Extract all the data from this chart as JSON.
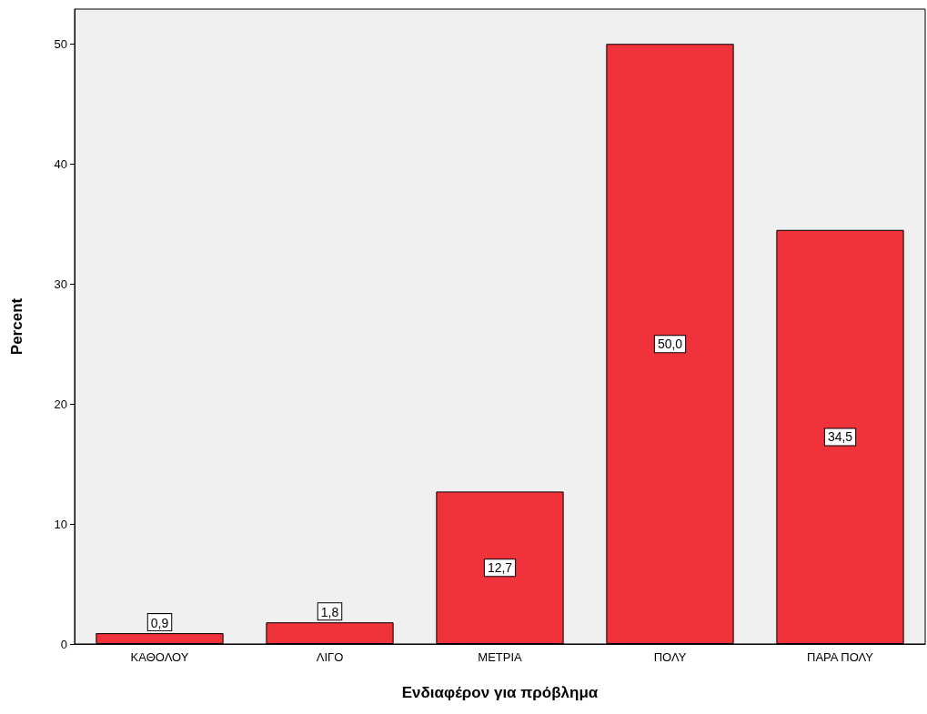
{
  "chart_data": {
    "type": "bar",
    "xlabel": "Ενδιαφέρον για πρόβλημα",
    "ylabel": "Percent",
    "categories": [
      "ΚΑΘΟΛΟΥ",
      "ΛΙΓΟ",
      "ΜΕΤΡΙΑ",
      "ΠΟΛΥ",
      "ΠΑΡΑ ΠΟΛΥ"
    ],
    "values": [
      0.9,
      1.8,
      12.7,
      50.0,
      34.5
    ],
    "value_labels": [
      "0,9",
      "1,8",
      "12,7",
      "50,0",
      "34,5"
    ],
    "color": "#f0323a",
    "ylim": [
      0,
      52.9
    ],
    "yticks": [
      0,
      10,
      20,
      30,
      40,
      50
    ],
    "grid": false
  }
}
